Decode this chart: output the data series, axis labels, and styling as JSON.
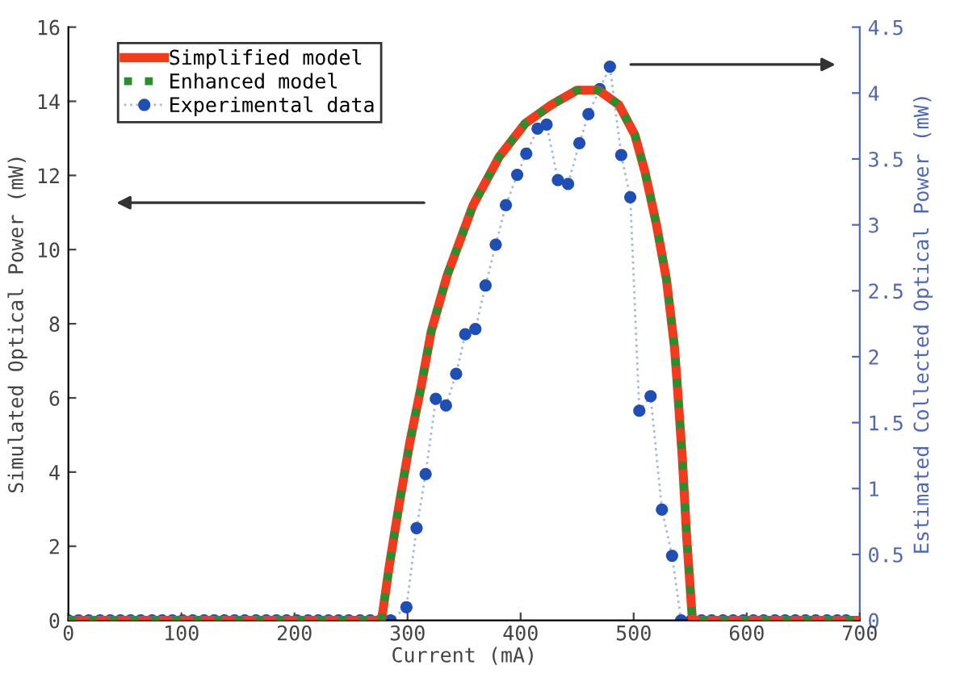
{
  "chart_data": {
    "type": "line",
    "xlabel": "Current (mA)",
    "ylabel": "Simulated Optical Power (mW)",
    "y2label": "Estimated Collected Optical Power (mW)",
    "xlim": [
      0,
      700
    ],
    "xticks": [
      0,
      100,
      200,
      300,
      400,
      500,
      600,
      700
    ],
    "ylim": [
      0,
      16
    ],
    "yticks": [
      0,
      2,
      4,
      6,
      8,
      10,
      12,
      14,
      16
    ],
    "y2lim": [
      0,
      4.5
    ],
    "y2ticks": [
      0,
      0.5,
      1,
      1.5,
      2,
      2.5,
      3,
      3.5,
      4,
      4.5
    ],
    "grid": false,
    "legend": "top left",
    "series": [
      {
        "name": "Simplified model",
        "color": "#f03c1e",
        "line_style": "solid",
        "marker": "none",
        "x": [
          0,
          277,
          284,
          293,
          302,
          312,
          321,
          335,
          358,
          381,
          404,
          427,
          450,
          469,
          487,
          501,
          510,
          520,
          529,
          536,
          538,
          543,
          547,
          552,
          700
        ],
        "values": [
          0,
          0,
          1.5,
          3.2,
          4.8,
          6.3,
          7.8,
          9.3,
          11.2,
          12.5,
          13.4,
          13.9,
          14.3,
          14.3,
          13.9,
          13.1,
          12.1,
          10.7,
          9.2,
          7.4,
          6.6,
          4.4,
          2.2,
          0,
          0
        ]
      },
      {
        "name": "Enhanced model",
        "color": "#2e8b2e",
        "line_style": "dotted",
        "marker": "none",
        "x": [
          0,
          277,
          284,
          293,
          302,
          312,
          321,
          335,
          358,
          381,
          404,
          427,
          450,
          469,
          487,
          501,
          510,
          520,
          529,
          536,
          538,
          543,
          547,
          552,
          700
        ],
        "values": [
          0,
          0,
          1.5,
          3.2,
          4.8,
          6.3,
          7.8,
          9.3,
          11.2,
          12.5,
          13.4,
          13.9,
          14.3,
          14.3,
          13.9,
          13.1,
          12.1,
          10.7,
          9.2,
          7.4,
          6.6,
          4.4,
          2.2,
          0,
          0
        ]
      },
      {
        "name": "Experimental data",
        "color": "#1f4fb4",
        "axis": "y2",
        "line_style": "dotted",
        "marker": "circle",
        "x": [
          0,
          9,
          18,
          28,
          37,
          46,
          55,
          64,
          74,
          83,
          92,
          101,
          110,
          120,
          129,
          138,
          147,
          156,
          166,
          175,
          184,
          193,
          202,
          212,
          221,
          230,
          239,
          248,
          258,
          267,
          276,
          285,
          299,
          308,
          316,
          325,
          334,
          343,
          351,
          360,
          369,
          378,
          387,
          397,
          405,
          415,
          423,
          433,
          442,
          452,
          460,
          470,
          479,
          489,
          497,
          505,
          515,
          525,
          534,
          542,
          551,
          560,
          569,
          579,
          588,
          597,
          606,
          615,
          625,
          634,
          643,
          652,
          661,
          671,
          680,
          688
        ],
        "values": [
          0,
          0,
          0,
          0,
          0,
          0,
          0,
          0,
          0,
          0,
          0,
          0,
          0,
          0,
          0,
          0,
          0,
          0,
          0,
          0,
          0,
          0,
          0,
          0,
          0,
          0,
          0,
          0,
          0,
          0,
          0,
          0,
          0.1,
          0.7,
          1.11,
          1.68,
          1.63,
          1.87,
          2.17,
          2.21,
          2.54,
          2.85,
          3.15,
          3.38,
          3.54,
          3.73,
          3.76,
          3.34,
          3.31,
          3.62,
          3.84,
          4.03,
          4.2,
          3.53,
          3.21,
          1.59,
          1.7,
          0.84,
          0.49,
          0,
          0,
          0,
          0,
          0,
          0,
          0,
          0,
          0,
          0,
          0,
          0,
          0,
          0,
          0,
          0,
          0
        ]
      }
    ]
  }
}
